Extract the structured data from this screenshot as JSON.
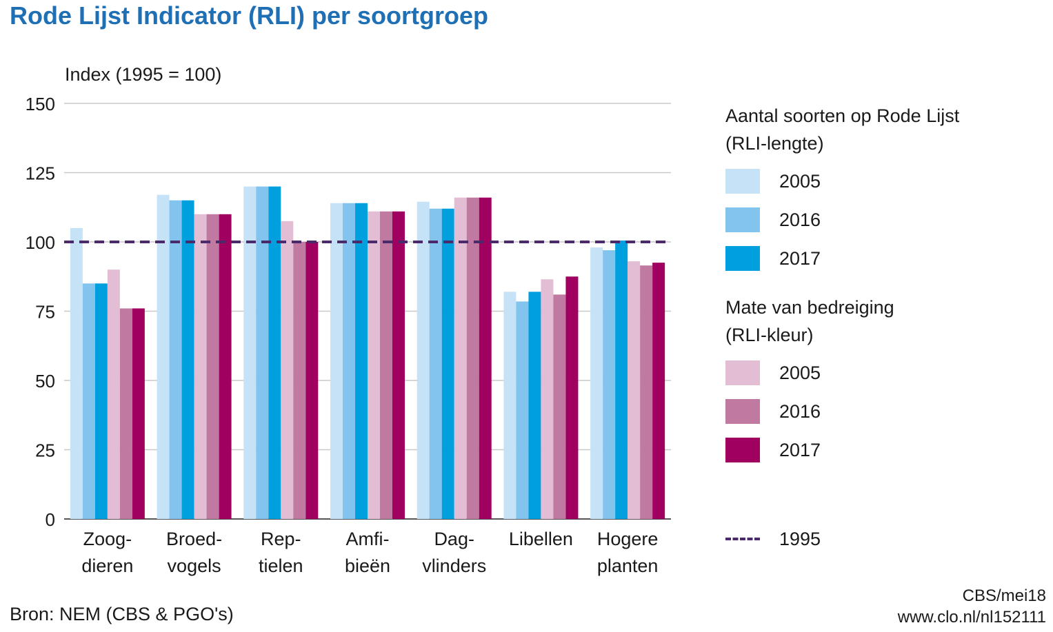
{
  "chart_data": {
    "type": "bar",
    "title": "Rode Lijst Indicator (RLI) per soortgroep",
    "ylabel": "Index (1995 = 100)",
    "ylim": [
      0,
      150
    ],
    "yticks": [
      0,
      25,
      50,
      75,
      100,
      125,
      150
    ],
    "grid": true,
    "categories": [
      [
        "Zoog-",
        "dieren"
      ],
      [
        "Broed-",
        "vogels"
      ],
      [
        "Rep-",
        "tielen"
      ],
      [
        "Amfi-",
        "bieën"
      ],
      [
        "Dag-",
        "vlinders"
      ],
      [
        "Libellen"
      ],
      [
        "Hogere",
        "planten"
      ]
    ],
    "legend_groups": [
      {
        "title": [
          "Aantal soorten op Rode Lijst",
          "(RLI-lengte)"
        ]
      },
      {
        "title": [
          "Mate van bedreiging",
          "(RLI-kleur)"
        ]
      }
    ],
    "series": [
      {
        "name": "2005",
        "group": 0,
        "color": "#c6e2f7",
        "values": [
          105,
          117,
          120,
          114,
          114.5,
          82,
          98
        ]
      },
      {
        "name": "2016",
        "group": 0,
        "color": "#82c4ee",
        "values": [
          85,
          115,
          120,
          114,
          112,
          78.5,
          97
        ]
      },
      {
        "name": "2017",
        "group": 0,
        "color": "#00a0de",
        "values": [
          85,
          115,
          120,
          114,
          112,
          82,
          100.5
        ]
      },
      {
        "name": "2005",
        "group": 1,
        "color": "#e3bdd3",
        "values": [
          90,
          110,
          107.5,
          111,
          116,
          86.5,
          93
        ]
      },
      {
        "name": "2016",
        "group": 1,
        "color": "#c07aa1",
        "values": [
          76,
          110,
          100,
          111,
          116,
          81,
          91.5
        ]
      },
      {
        "name": "2017",
        "group": 1,
        "color": "#a0005f",
        "values": [
          76,
          110,
          100,
          111,
          116,
          87.5,
          92.5
        ]
      }
    ],
    "reference_line": {
      "name": "1995",
      "value": 100,
      "color": "#4b2a6b",
      "style": "dashed"
    }
  },
  "source": "Bron: NEM (CBS & PGO's)",
  "credit": [
    "CBS/mei18",
    "www.clo.nl/nl152111"
  ]
}
